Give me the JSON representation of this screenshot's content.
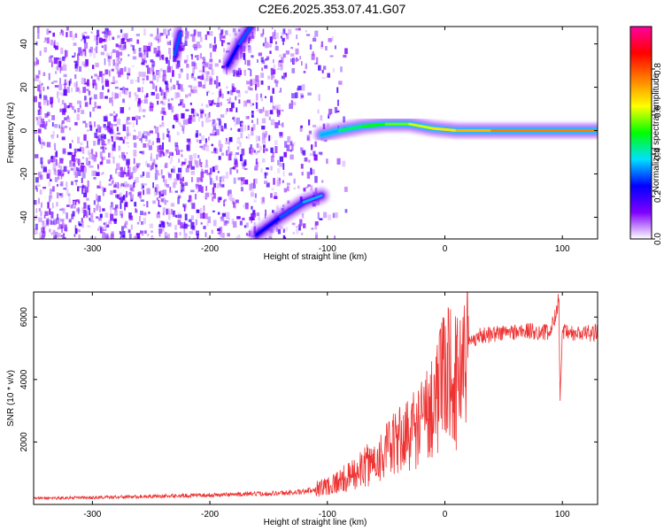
{
  "title": "C2E6.2025.353.07.41.G07",
  "chart_data": [
    {
      "type": "heatmap",
      "xlabel": "Height of straight line (km)",
      "ylabel": "Frequency (Hz)",
      "xlim": [
        -350,
        130
      ],
      "ylim": [
        -50,
        48
      ],
      "xticks": [
        -300,
        -200,
        -100,
        0,
        100
      ],
      "yticks": [
        -40,
        -20,
        0,
        20,
        40
      ],
      "colorbar": {
        "label": "Normalized spectral amplitude",
        "range": [
          0,
          1
        ],
        "ticks": [
          0.0,
          0.2,
          0.4,
          0.6,
          0.8
        ],
        "tick_labels": [
          "0.0",
          "0.2",
          "0.4",
          "0.6",
          "0.8"
        ],
        "colors": [
          "#ffffff",
          "#8000ff",
          "#0000ff",
          "#00e0ff",
          "#00ff00",
          "#ffff00",
          "#ff8000",
          "#ff0000",
          "#ff00a0"
        ]
      },
      "features": [
        {
          "name": "carrier",
          "x": [
            -105,
            -90,
            -70,
            -50,
            -30,
            -10,
            10,
            40,
            80,
            130
          ],
          "y": [
            -2,
            0,
            2,
            3,
            3,
            1,
            0,
            0,
            0,
            0
          ],
          "amplitude": [
            0.35,
            0.45,
            0.5,
            0.55,
            0.6,
            0.65,
            0.7,
            0.75,
            0.75,
            0.75
          ]
        },
        {
          "name": "lower-branch",
          "x": [
            -160,
            -140,
            -120,
            -105
          ],
          "y": [
            -48,
            -40,
            -33,
            -30
          ],
          "amplitude": [
            0.25,
            0.3,
            0.35,
            0.3
          ]
        },
        {
          "name": "upper-branch",
          "x": [
            -185,
            -175,
            -165
          ],
          "y": [
            30,
            40,
            48
          ],
          "amplitude": [
            0.25,
            0.3,
            0.3
          ]
        },
        {
          "name": "upper-streak",
          "x": [
            -230,
            -225
          ],
          "y": [
            35,
            45
          ],
          "amplitude": [
            0.3,
            0.3
          ]
        }
      ]
    },
    {
      "type": "line",
      "xlabel": "Height of straight line (km)",
      "ylabel": "SNR (10 * v/v)",
      "xlim": [
        -350,
        130
      ],
      "ylim": [
        0,
        6800
      ],
      "xticks": [
        -300,
        -200,
        -100,
        0,
        100
      ],
      "yticks": [
        2000,
        4000,
        6000
      ],
      "color": "#ee3333",
      "series": [
        {
          "x": [
            -350,
            -300,
            -250,
            -200,
            -150,
            -120,
            -100,
            -80,
            -60,
            -40,
            -20,
            -10,
            0,
            5,
            10,
            15,
            20,
            30,
            50,
            70,
            90,
            97,
            98,
            100,
            110,
            130
          ],
          "y": [
            200,
            220,
            260,
            300,
            350,
            400,
            600,
            900,
            1400,
            2000,
            2600,
            3300,
            4000,
            4500,
            3800,
            4800,
            5200,
            5400,
            5500,
            5550,
            5500,
            6600,
            3200,
            5500,
            5450,
            5500
          ]
        }
      ]
    }
  ]
}
